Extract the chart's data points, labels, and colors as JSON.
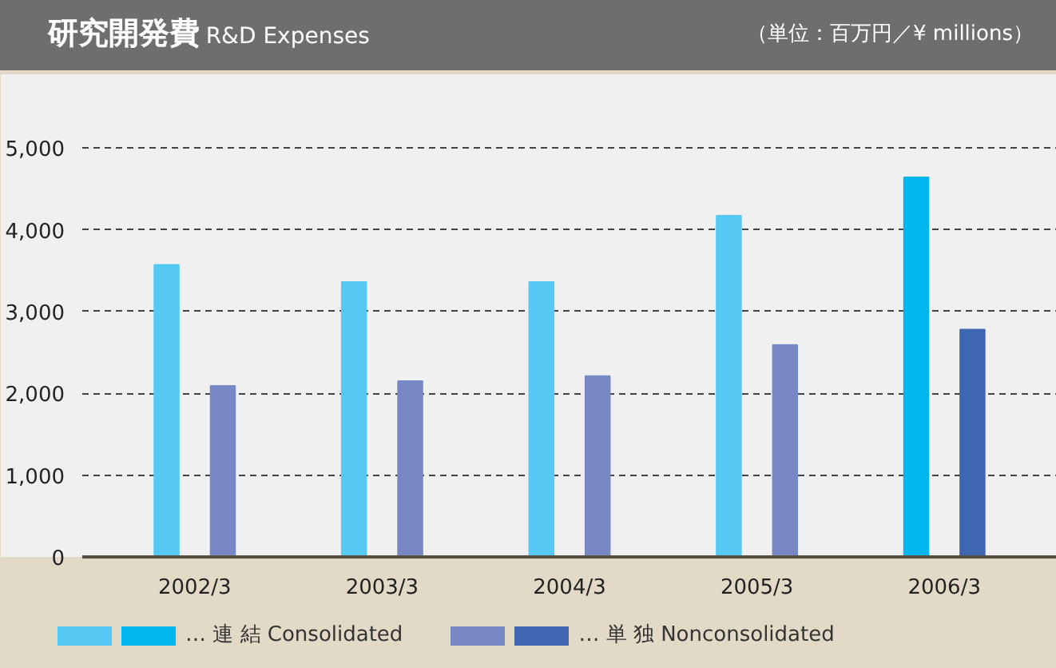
{
  "chart_data": {
    "type": "bar",
    "title": "研究開発費",
    "subtitle": "R&D Expenses",
    "annotations": [
      "（単位：百万円／¥ millions）"
    ],
    "categories": [
      "2002/3",
      "2003/3",
      "2004/3",
      "2005/3",
      "2006/3"
    ],
    "series": [
      {
        "name": "… 連 結 Consolidated",
        "colors": [
          "#55c9f3",
          "#55c9f3",
          "#55c9f3",
          "#55c9f3",
          "#00b6ed"
        ],
        "values": [
          3570,
          3360,
          3360,
          4170,
          4640
        ]
      },
      {
        "name": "… 単 独 Nonconsolidated",
        "colors": [
          "#7888c4",
          "#7888c4",
          "#7888c4",
          "#7888c4",
          "#3f66b0"
        ],
        "values": [
          2090,
          2150,
          2210,
          2590,
          2780
        ]
      }
    ],
    "ylim": [
      0,
      5900
    ],
    "yticks": [
      {
        "value": 0,
        "label": "0"
      },
      {
        "value": 1000,
        "label": "1,000"
      },
      {
        "value": 2000,
        "label": "2,000"
      },
      {
        "value": 3000,
        "label": "3,000"
      },
      {
        "value": 4000,
        "label": "4,000"
      },
      {
        "value": 5000,
        "label": "5,000"
      }
    ],
    "grid": "y",
    "legend": "bottom"
  }
}
